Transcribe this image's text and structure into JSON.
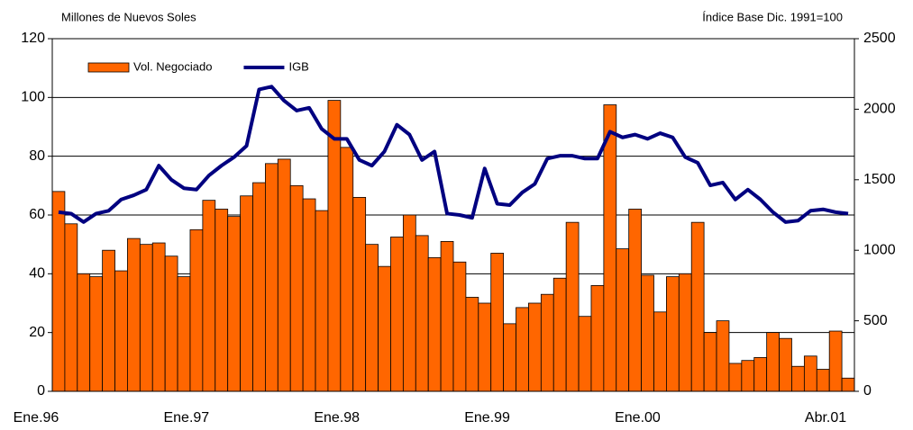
{
  "chart_data": {
    "type": "bar",
    "subtitle_left": "Millones de Nuevos Soles",
    "subtitle_right": "Índice Base Dic. 1991=100",
    "categories": [
      "Ene.96",
      null,
      null,
      null,
      null,
      null,
      null,
      null,
      null,
      null,
      null,
      null,
      "Ene.97",
      null,
      null,
      null,
      null,
      null,
      null,
      null,
      null,
      null,
      null,
      null,
      "Ene.98",
      null,
      null,
      null,
      null,
      null,
      null,
      null,
      null,
      null,
      null,
      null,
      "Ene.99",
      null,
      null,
      null,
      null,
      null,
      null,
      null,
      null,
      null,
      null,
      null,
      "Ene.00",
      null,
      null,
      null,
      null,
      null,
      null,
      null,
      null,
      null,
      null,
      null,
      null,
      null,
      null,
      "Abr.01"
    ],
    "series": [
      {
        "name": "Vol. Negociado",
        "type": "bar",
        "color": "#ff6600",
        "values": [
          68,
          57,
          40,
          39,
          48,
          41,
          52,
          50,
          50.5,
          46,
          39,
          55,
          65,
          62,
          59.5,
          66.5,
          71,
          77.5,
          79,
          70,
          65.5,
          61.5,
          99,
          83,
          66,
          50,
          42.5,
          52.5,
          60,
          53,
          45.5,
          51,
          44,
          32,
          30,
          47,
          23,
          28.5,
          30,
          33,
          38.5,
          57.5,
          25.5,
          36,
          97.5,
          48.5,
          62,
          39.5,
          27,
          39,
          40,
          57.5,
          20,
          24,
          9.5,
          10.5,
          11.5,
          20,
          18,
          8.5,
          12,
          7.5,
          20.5,
          4.5
        ]
      },
      {
        "name": "IGB",
        "type": "line",
        "axis": "y2",
        "color": "#000080",
        "values": [
          1270,
          1260,
          1200,
          1260,
          1280,
          1360,
          1390,
          1430,
          1600,
          1500,
          1440,
          1430,
          1530,
          1600,
          1660,
          1740,
          2140,
          2160,
          2060,
          1990,
          2010,
          1860,
          1790,
          1790,
          1640,
          1600,
          1700,
          1890,
          1820,
          1640,
          1700,
          1260,
          1250,
          1230,
          1580,
          1330,
          1320,
          1410,
          1470,
          1650,
          1670,
          1670,
          1650,
          1650,
          1840,
          1800,
          1820,
          1790,
          1830,
          1800,
          1660,
          1620,
          1460,
          1480,
          1360,
          1430,
          1360,
          1270,
          1200,
          1210,
          1280,
          1290,
          1270,
          1260
        ]
      }
    ],
    "ylim": [
      0,
      120
    ],
    "yticks": [
      0,
      20,
      40,
      60,
      80,
      100,
      120
    ],
    "y2lim": [
      0,
      2500
    ],
    "y2ticks": [
      0,
      500,
      1000,
      1500,
      2000,
      2500
    ],
    "grid": true,
    "legend": "top-left"
  }
}
